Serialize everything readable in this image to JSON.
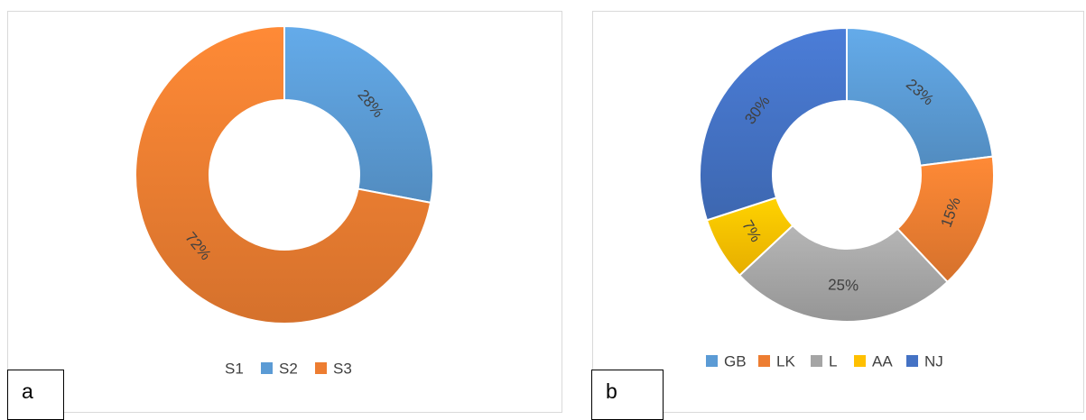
{
  "chart_data": [
    {
      "type": "donut",
      "panel_label": "a",
      "legend_position": "bottom",
      "categories": [
        "S1",
        "S2",
        "S3"
      ],
      "values": [
        0,
        28,
        72
      ],
      "data_labels": [
        "",
        "28%",
        "72%"
      ],
      "colors": [
        "#4472c4",
        "#5b9bd5",
        "#ed7d31"
      ]
    },
    {
      "type": "donut",
      "panel_label": "b",
      "legend_position": "bottom",
      "categories": [
        "GB",
        "LK",
        "L",
        "AA",
        "NJ"
      ],
      "values": [
        23,
        15,
        25,
        7,
        30
      ],
      "data_labels": [
        "23%",
        "15%",
        "25%",
        "7%",
        "30%"
      ],
      "colors": [
        "#5b9bd5",
        "#ed7d31",
        "#a5a5a5",
        "#ffc000",
        "#4472c4"
      ]
    }
  ]
}
